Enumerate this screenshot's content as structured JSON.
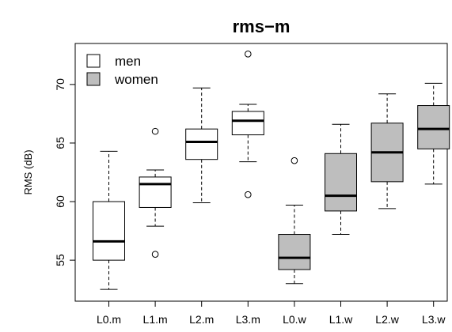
{
  "chart_data": {
    "type": "boxplot",
    "title": "rms−m",
    "xlabel": "",
    "ylabel": "RMS (dB)",
    "ylim": [
      51.5,
      73.5
    ],
    "yticks": [
      55,
      60,
      65,
      70
    ],
    "ytick_labels": [
      "55",
      "60",
      "65",
      "70"
    ],
    "categories": [
      "L0.m",
      "L1.m",
      "L2.m",
      "L3.m",
      "L0.w",
      "L1.w",
      "L2.w",
      "L3.w"
    ],
    "series": [
      {
        "name": "men",
        "color": "#ffffff",
        "boxes": [
          {
            "category": "L0.m",
            "whisker_low": 52.5,
            "q1": 55.0,
            "median": 56.6,
            "q3": 60.0,
            "whisker_high": 64.3,
            "outliers": []
          },
          {
            "category": "L1.m",
            "whisker_low": 57.9,
            "q1": 59.5,
            "median": 61.5,
            "q3": 62.1,
            "whisker_high": 62.7,
            "outliers": [
              55.5,
              66.0
            ]
          },
          {
            "category": "L2.m",
            "whisker_low": 59.9,
            "q1": 63.6,
            "median": 65.1,
            "q3": 66.2,
            "whisker_high": 69.7,
            "outliers": []
          },
          {
            "category": "L3.m",
            "whisker_low": 63.4,
            "q1": 65.7,
            "median": 66.9,
            "q3": 67.7,
            "whisker_high": 68.3,
            "outliers": [
              60.6,
              72.6
            ]
          }
        ]
      },
      {
        "name": "women",
        "color": "#bebebe",
        "boxes": [
          {
            "category": "L0.w",
            "whisker_low": 53.0,
            "q1": 54.2,
            "median": 55.2,
            "q3": 57.2,
            "whisker_high": 59.7,
            "outliers": [
              63.5
            ]
          },
          {
            "category": "L1.w",
            "whisker_low": 57.2,
            "q1": 59.2,
            "median": 60.5,
            "q3": 64.1,
            "whisker_high": 66.6,
            "outliers": []
          },
          {
            "category": "L2.w",
            "whisker_low": 59.4,
            "q1": 61.7,
            "median": 64.2,
            "q3": 66.7,
            "whisker_high": 69.2,
            "outliers": []
          },
          {
            "category": "L3.w",
            "whisker_low": 61.5,
            "q1": 64.5,
            "median": 66.2,
            "q3": 68.2,
            "whisker_high": 70.1,
            "outliers": []
          }
        ]
      }
    ],
    "legend": {
      "position": "top-left",
      "entries": [
        "men",
        "women"
      ]
    },
    "grid": false
  }
}
